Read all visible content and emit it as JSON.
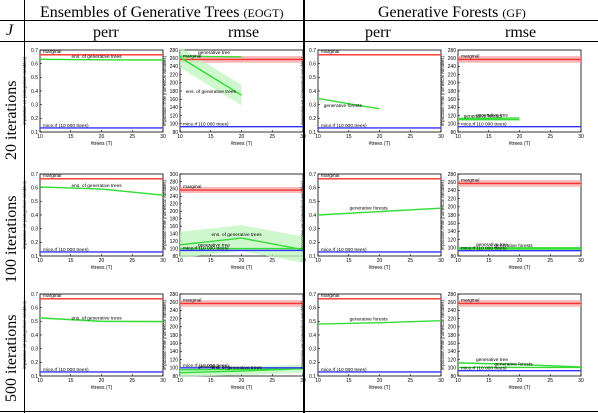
{
  "header": {
    "j_label": "J",
    "group_left": "Ensembles of Generative Trees",
    "group_left_abbr": "(EOGT)",
    "group_right": "Generative Forests",
    "group_right_abbr": "(GF)",
    "col_perr": "perr",
    "col_rmse": "rmse"
  },
  "rows": [
    {
      "label": "20 iterations"
    },
    {
      "label": "100 iterations"
    },
    {
      "label": "500 iterations"
    }
  ],
  "colors": {
    "marginal": "#ff3333",
    "mice": "#3333ff",
    "model": "#33dd33",
    "band_red": "#f4a0a0",
    "band_green": "#bff5bf"
  },
  "axes": {
    "xlabel": "#trees (T)",
    "x_ticks": [
      10,
      15,
      20,
      25,
      30
    ],
    "perr_ylabel": "imputation err (categorical variables)",
    "rmse_ylabel": "imputation rmse (numerical variables)"
  },
  "chart_data": [
    {
      "type": "line",
      "row": 0,
      "col": 0,
      "xlim": [
        10,
        30
      ],
      "ylim": [
        0.1,
        0.7
      ],
      "yticks": [
        0.1,
        0.2,
        0.3,
        0.4,
        0.5,
        0.6,
        0.7
      ],
      "series": [
        {
          "name": "marginal",
          "x": [
            10,
            30
          ],
          "values": [
            0.665,
            0.665
          ],
          "band": 0.005,
          "color": "marginal"
        },
        {
          "name": "mice.rf (10 000 trees)",
          "x": [
            10,
            30
          ],
          "values": [
            0.13,
            0.13
          ],
          "band": 0,
          "color": "mice"
        },
        {
          "name": "ens. of generative trees",
          "x": [
            10,
            20,
            30
          ],
          "values": [
            0.632,
            0.628,
            0.627
          ],
          "band": 0.005,
          "color": "model"
        }
      ]
    },
    {
      "type": "line",
      "row": 0,
      "col": 1,
      "xlim": [
        10,
        30
      ],
      "ylim": [
        80,
        280
      ],
      "yticks": [
        80,
        100,
        120,
        140,
        160,
        180,
        200,
        220,
        240,
        260,
        280
      ],
      "series": [
        {
          "name": "marginal",
          "x": [
            10,
            30
          ],
          "values": [
            257,
            257
          ],
          "band": 8,
          "color": "marginal"
        },
        {
          "name": "generative tree",
          "x": [
            10,
            20
          ],
          "values": [
            265,
            263
          ],
          "band": 0,
          "color": "model"
        },
        {
          "name": "ens. of generative trees",
          "x": [
            10,
            20
          ],
          "values": [
            262,
            170
          ],
          "band": 25,
          "color": "model"
        },
        {
          "name": "mice.rf (10 000 trees)",
          "x": [
            10,
            30
          ],
          "values": [
            93,
            93
          ],
          "band": 0,
          "color": "mice"
        }
      ]
    },
    {
      "type": "line",
      "row": 0,
      "col": 2,
      "xlim": [
        10,
        30
      ],
      "ylim": [
        0.1,
        0.7
      ],
      "yticks": [
        0.1,
        0.2,
        0.3,
        0.4,
        0.5,
        0.6,
        0.7
      ],
      "series": [
        {
          "name": "marginal",
          "x": [
            10,
            30
          ],
          "values": [
            0.665,
            0.665
          ],
          "band": 0.005,
          "color": "marginal"
        },
        {
          "name": "generative forests",
          "x": [
            10,
            20
          ],
          "values": [
            0.345,
            0.27
          ],
          "band": 0,
          "color": "model"
        },
        {
          "name": "mice.rf (10 000 trees)",
          "x": [
            10,
            30
          ],
          "values": [
            0.13,
            0.13
          ],
          "band": 0,
          "color": "mice"
        }
      ]
    },
    {
      "type": "line",
      "row": 0,
      "col": 3,
      "xlim": [
        10,
        30
      ],
      "ylim": [
        80,
        280
      ],
      "yticks": [
        80,
        100,
        120,
        140,
        160,
        180,
        200,
        220,
        240,
        260,
        280
      ],
      "series": [
        {
          "name": "marginal",
          "x": [
            10,
            30
          ],
          "values": [
            257,
            257
          ],
          "band": 8,
          "color": "marginal"
        },
        {
          "name": "generative tree",
          "x": [
            10,
            20
          ],
          "values": [
            113,
            114
          ],
          "band": 0,
          "color": "model"
        },
        {
          "name": "generative forests",
          "x": [
            10,
            20
          ],
          "values": [
            110,
            110
          ],
          "band": 0,
          "color": "model"
        },
        {
          "name": "mice.rf (10 000 trees)",
          "x": [
            10,
            30
          ],
          "values": [
            93,
            93
          ],
          "band": 0,
          "color": "mice"
        }
      ]
    },
    {
      "type": "line",
      "row": 1,
      "col": 0,
      "xlim": [
        10,
        30
      ],
      "ylim": [
        0.1,
        0.7
      ],
      "yticks": [
        0.1,
        0.2,
        0.3,
        0.4,
        0.5,
        0.6,
        0.7
      ],
      "series": [
        {
          "name": "marginal",
          "x": [
            10,
            30
          ],
          "values": [
            0.665,
            0.665
          ],
          "band": 0.005,
          "color": "marginal"
        },
        {
          "name": "ens. of generative trees",
          "x": [
            10,
            20,
            30
          ],
          "values": [
            0.605,
            0.59,
            0.545
          ],
          "band": 0.005,
          "color": "model"
        },
        {
          "name": "mice.rf (10 000 trees)",
          "x": [
            10,
            30
          ],
          "values": [
            0.13,
            0.13
          ],
          "band": 0,
          "color": "mice"
        }
      ]
    },
    {
      "type": "line",
      "row": 1,
      "col": 1,
      "xlim": [
        10,
        30
      ],
      "ylim": [
        80,
        300
      ],
      "yticks": [
        80,
        100,
        120,
        140,
        160,
        180,
        200,
        220,
        240,
        260,
        280,
        300
      ],
      "series": [
        {
          "name": "marginal",
          "x": [
            10,
            30
          ],
          "values": [
            257,
            257
          ],
          "band": 8,
          "color": "marginal"
        },
        {
          "name": "ens. of generative trees",
          "x": [
            10,
            20,
            30
          ],
          "values": [
            110,
            128,
            97
          ],
          "band": 35,
          "color": "model"
        },
        {
          "name": "generative tree",
          "x": [
            10,
            30
          ],
          "values": [
            100,
            100
          ],
          "band": 0,
          "color": "model"
        },
        {
          "name": "mice.rf (10 000 trees)",
          "x": [
            10,
            30
          ],
          "values": [
            95,
            95
          ],
          "band": 0,
          "color": "mice"
        }
      ]
    },
    {
      "type": "line",
      "row": 1,
      "col": 2,
      "xlim": [
        10,
        30
      ],
      "ylim": [
        0.1,
        0.7
      ],
      "yticks": [
        0.1,
        0.2,
        0.3,
        0.4,
        0.5,
        0.6,
        0.7
      ],
      "series": [
        {
          "name": "marginal",
          "x": [
            10,
            30
          ],
          "values": [
            0.665,
            0.665
          ],
          "band": 0.005,
          "color": "marginal"
        },
        {
          "name": "generative forests",
          "x": [
            10,
            20,
            30
          ],
          "values": [
            0.4,
            0.425,
            0.45
          ],
          "band": 0,
          "color": "model"
        },
        {
          "name": "mice.rf (10 000 trees)",
          "x": [
            10,
            30
          ],
          "values": [
            0.13,
            0.13
          ],
          "band": 0,
          "color": "mice"
        }
      ]
    },
    {
      "type": "line",
      "row": 1,
      "col": 3,
      "xlim": [
        10,
        30
      ],
      "ylim": [
        80,
        280
      ],
      "yticks": [
        80,
        100,
        120,
        140,
        160,
        180,
        200,
        220,
        240,
        260,
        280
      ],
      "series": [
        {
          "name": "marginal",
          "x": [
            10,
            30
          ],
          "values": [
            257,
            257
          ],
          "band": 8,
          "color": "marginal"
        },
        {
          "name": "generative tree",
          "x": [
            10,
            30
          ],
          "values": [
            100,
            100
          ],
          "band": 0,
          "color": "model"
        },
        {
          "name": "generative forests",
          "x": [
            10,
            30
          ],
          "values": [
            97,
            97
          ],
          "band": 0,
          "color": "model"
        },
        {
          "name": "mice.rf (10 000 trees)",
          "x": [
            10,
            30
          ],
          "values": [
            93,
            93
          ],
          "band": 0,
          "color": "mice"
        }
      ]
    },
    {
      "type": "line",
      "row": 2,
      "col": 0,
      "xlim": [
        10,
        30
      ],
      "ylim": [
        0.1,
        0.7
      ],
      "yticks": [
        0.1,
        0.2,
        0.3,
        0.4,
        0.5,
        0.6,
        0.7
      ],
      "series": [
        {
          "name": "marginal",
          "x": [
            10,
            30
          ],
          "values": [
            0.665,
            0.665
          ],
          "band": 0.005,
          "color": "marginal"
        },
        {
          "name": "ens. of generative trees",
          "x": [
            10,
            20,
            30
          ],
          "values": [
            0.525,
            0.5,
            0.498
          ],
          "band": 0.008,
          "color": "model"
        },
        {
          "name": "mice.rf (10 000 trees)",
          "x": [
            10,
            30
          ],
          "values": [
            0.13,
            0.13
          ],
          "band": 0,
          "color": "mice"
        }
      ]
    },
    {
      "type": "line",
      "row": 2,
      "col": 1,
      "xlim": [
        10,
        30
      ],
      "ylim": [
        80,
        280
      ],
      "yticks": [
        80,
        100,
        120,
        140,
        160,
        180,
        200,
        220,
        240,
        260,
        280
      ],
      "series": [
        {
          "name": "marginal",
          "x": [
            10,
            30
          ],
          "values": [
            257,
            257
          ],
          "band": 8,
          "color": "marginal"
        },
        {
          "name": "ens. of generative trees",
          "x": [
            10,
            20,
            30
          ],
          "values": [
            88,
            92,
            98
          ],
          "band": 10,
          "color": "model"
        },
        {
          "name": "generative tree",
          "x": [
            10,
            20,
            30
          ],
          "values": [
            95,
            96,
            98
          ],
          "band": 0,
          "color": "model"
        },
        {
          "name": "mice.rf (10 000 trees)",
          "x": [
            10,
            30
          ],
          "values": [
            100,
            100
          ],
          "band": 0,
          "color": "mice"
        }
      ]
    },
    {
      "type": "line",
      "row": 2,
      "col": 2,
      "xlim": [
        10,
        30
      ],
      "ylim": [
        0.1,
        0.7
      ],
      "yticks": [
        0.1,
        0.2,
        0.3,
        0.4,
        0.5,
        0.6,
        0.7
      ],
      "series": [
        {
          "name": "marginal",
          "x": [
            10,
            30
          ],
          "values": [
            0.665,
            0.665
          ],
          "band": 0.005,
          "color": "marginal"
        },
        {
          "name": "generative forests",
          "x": [
            10,
            20,
            30
          ],
          "values": [
            0.48,
            0.49,
            0.505
          ],
          "band": 0,
          "color": "model"
        },
        {
          "name": "mice.rf (10 000 trees)",
          "x": [
            10,
            30
          ],
          "values": [
            0.13,
            0.13
          ],
          "band": 0,
          "color": "mice"
        }
      ]
    },
    {
      "type": "line",
      "row": 2,
      "col": 3,
      "xlim": [
        10,
        30
      ],
      "ylim": [
        80,
        280
      ],
      "yticks": [
        80,
        100,
        120,
        140,
        160,
        180,
        200,
        220,
        240,
        260,
        280
      ],
      "series": [
        {
          "name": "marginal",
          "x": [
            10,
            30
          ],
          "values": [
            257,
            257
          ],
          "band": 8,
          "color": "marginal"
        },
        {
          "name": "generative tree",
          "x": [
            10,
            20,
            30
          ],
          "values": [
            112,
            108,
            102
          ],
          "band": 0,
          "color": "model"
        },
        {
          "name": "generative forests",
          "x": [
            10,
            30
          ],
          "values": [
            101,
            101
          ],
          "band": 0,
          "color": "model"
        },
        {
          "name": "mice.rf (10 000 trees)",
          "x": [
            10,
            30
          ],
          "values": [
            93,
            93
          ],
          "band": 0,
          "color": "mice"
        }
      ]
    }
  ]
}
